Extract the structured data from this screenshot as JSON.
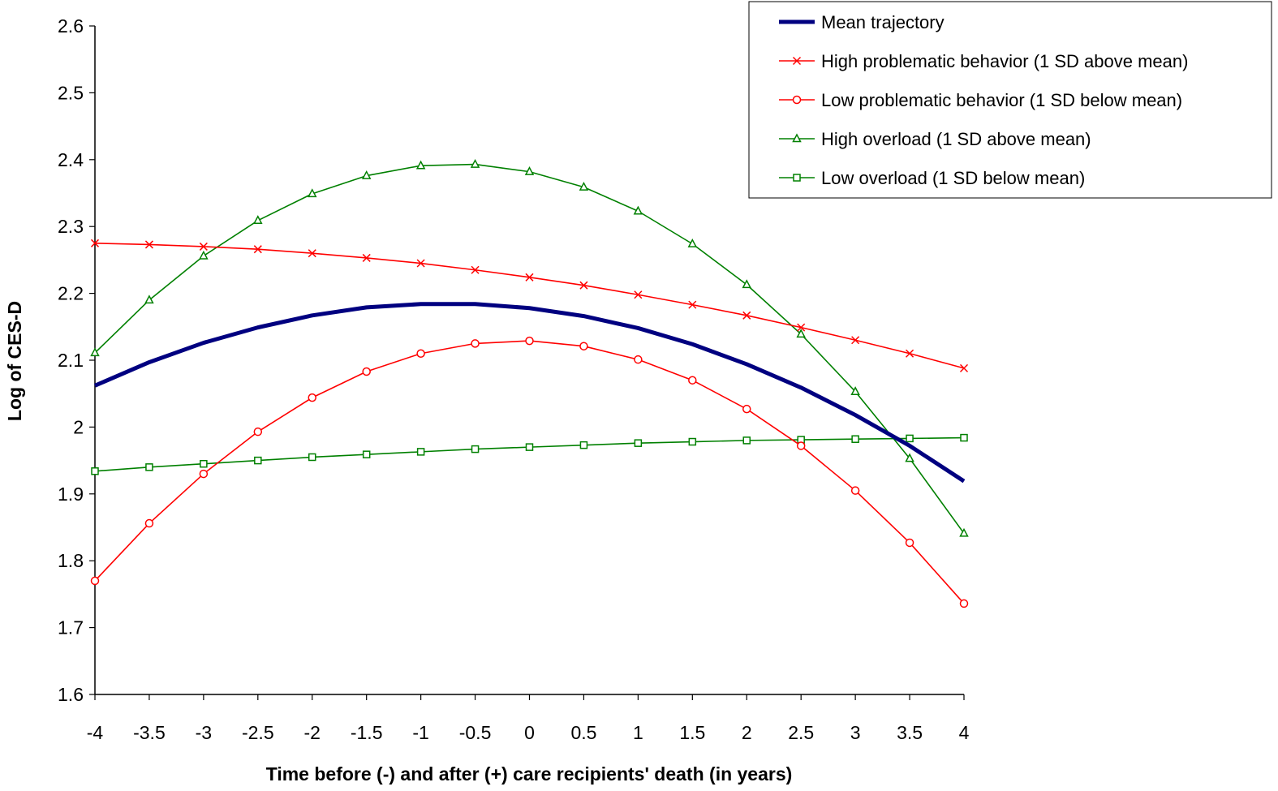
{
  "chart_data": {
    "type": "line",
    "title": "",
    "xlabel": "Time before (-) and after (+) care recipients' death (in years)",
    "ylabel": "Log of CES-D",
    "x": [
      -4,
      -3.5,
      -3,
      -2.5,
      -2,
      -1.5,
      -1,
      -0.5,
      0,
      0.5,
      1,
      1.5,
      2,
      2.5,
      3,
      3.5,
      4
    ],
    "x_tick_labels": [
      "-4",
      "-3.5",
      "-3",
      "-2.5",
      "-2",
      "-1.5",
      "-1",
      "-0.5",
      "0",
      "0.5",
      "1",
      "1.5",
      "2",
      "2.5",
      "3",
      "3.5",
      "4"
    ],
    "y_tick_labels": [
      "1.6",
      "1.7",
      "1.8",
      "1.9",
      "2",
      "2.1",
      "2.2",
      "2.3",
      "2.4",
      "2.5",
      "2.6"
    ],
    "xlim": [
      -4,
      4
    ],
    "ylim": [
      1.6,
      2.6
    ],
    "grid": false,
    "legend_position": "top-right",
    "series": [
      {
        "name": "Mean trajectory",
        "color": "#000080",
        "marker": "none",
        "values": [
          2.062,
          2.097,
          2.126,
          2.149,
          2.167,
          2.179,
          2.184,
          2.184,
          2.178,
          2.166,
          2.148,
          2.124,
          2.094,
          2.059,
          2.018,
          1.972,
          1.919
        ]
      },
      {
        "name": "High problematic behavior (1 SD above mean)",
        "color": "#ff0000",
        "marker": "x",
        "values": [
          2.275,
          2.273,
          2.27,
          2.266,
          2.26,
          2.253,
          2.245,
          2.235,
          2.224,
          2.212,
          2.198,
          2.183,
          2.167,
          2.149,
          2.13,
          2.11,
          2.088
        ]
      },
      {
        "name": "Low problematic behavior (1 SD below mean)",
        "color": "#ff0000",
        "marker": "circle",
        "values": [
          1.77,
          1.856,
          1.93,
          1.993,
          2.044,
          2.083,
          2.11,
          2.125,
          2.129,
          2.121,
          2.101,
          2.07,
          2.027,
          1.972,
          1.905,
          1.827,
          1.736
        ]
      },
      {
        "name": "High overload (1 SD above mean)",
        "color": "#008000",
        "marker": "triangle",
        "values": [
          2.111,
          2.19,
          2.256,
          2.309,
          2.349,
          2.376,
          2.391,
          2.393,
          2.382,
          2.359,
          2.323,
          2.274,
          2.213,
          2.139,
          2.053,
          1.953,
          1.841
        ]
      },
      {
        "name": "Low overload (1  SD below mean)",
        "color": "#008000",
        "marker": "square",
        "values": [
          1.934,
          1.94,
          1.945,
          1.95,
          1.955,
          1.959,
          1.963,
          1.967,
          1.97,
          1.973,
          1.976,
          1.978,
          1.98,
          1.981,
          1.982,
          1.983,
          1.984
        ]
      }
    ]
  }
}
